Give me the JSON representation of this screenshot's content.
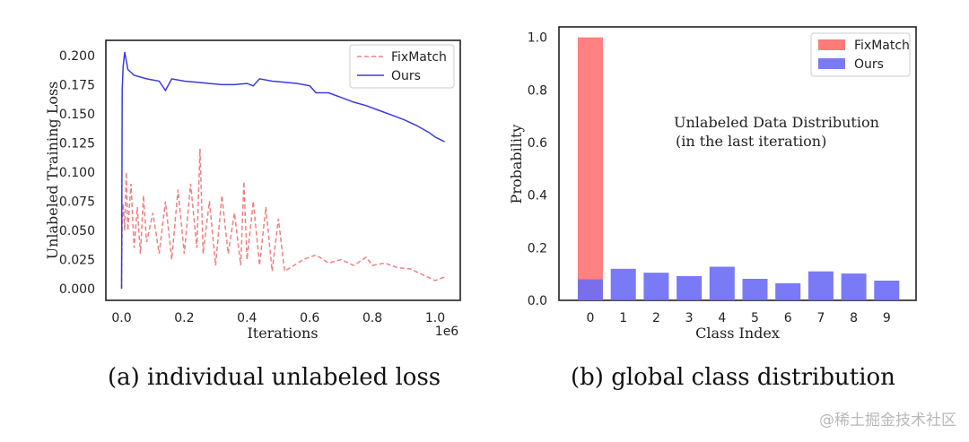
{
  "chart_data": [
    {
      "type": "line",
      "title": "",
      "xlabel": "Iterations",
      "ylabel": "Unlabeled Training Loss",
      "x_offset_label": "1e6",
      "xlim": [
        -0.05,
        1.08
      ],
      "ylim": [
        -0.01,
        0.213
      ],
      "xticks": [
        0.0,
        0.2,
        0.4,
        0.6,
        0.8,
        1.0
      ],
      "xtick_labels": [
        "0.0",
        "0.2",
        "0.4",
        "0.6",
        "0.8",
        "1.0"
      ],
      "yticks": [
        0.0,
        0.025,
        0.05,
        0.075,
        0.1,
        0.125,
        0.15,
        0.175,
        0.2
      ],
      "ytick_labels": [
        "0.000",
        "0.025",
        "0.050",
        "0.075",
        "0.100",
        "0.125",
        "0.150",
        "0.175",
        "0.200"
      ],
      "legend_position": "top-right",
      "series": [
        {
          "name": "FixMatch",
          "color": "#f08080",
          "style": "dashed",
          "x": [
            0.0,
            0.002,
            0.005,
            0.01,
            0.015,
            0.02,
            0.03,
            0.04,
            0.05,
            0.06,
            0.07,
            0.08,
            0.1,
            0.12,
            0.14,
            0.16,
            0.18,
            0.2,
            0.22,
            0.24,
            0.25,
            0.26,
            0.28,
            0.3,
            0.32,
            0.34,
            0.36,
            0.38,
            0.39,
            0.4,
            0.42,
            0.44,
            0.46,
            0.48,
            0.5,
            0.52,
            0.55,
            0.58,
            0.62,
            0.66,
            0.7,
            0.74,
            0.78,
            0.8,
            0.84,
            0.88,
            0.92,
            0.96,
            1.0,
            1.03
          ],
          "y": [
            0.0,
            0.06,
            0.073,
            0.05,
            0.1,
            0.05,
            0.09,
            0.035,
            0.07,
            0.03,
            0.08,
            0.04,
            0.065,
            0.03,
            0.075,
            0.025,
            0.085,
            0.03,
            0.09,
            0.035,
            0.12,
            0.03,
            0.075,
            0.02,
            0.08,
            0.03,
            0.065,
            0.02,
            0.092,
            0.025,
            0.075,
            0.02,
            0.07,
            0.015,
            0.06,
            0.015,
            0.02,
            0.025,
            0.029,
            0.022,
            0.025,
            0.02,
            0.027,
            0.02,
            0.022,
            0.018,
            0.017,
            0.012,
            0.007,
            0.01
          ]
        },
        {
          "name": "Ours",
          "color": "#3a3ae0",
          "style": "solid",
          "x": [
            0.0,
            0.002,
            0.005,
            0.01,
            0.02,
            0.04,
            0.08,
            0.12,
            0.14,
            0.16,
            0.2,
            0.24,
            0.28,
            0.32,
            0.36,
            0.4,
            0.42,
            0.44,
            0.48,
            0.52,
            0.56,
            0.6,
            0.62,
            0.66,
            0.7,
            0.74,
            0.78,
            0.82,
            0.86,
            0.9,
            0.94,
            0.98,
            1.0,
            1.03
          ],
          "y": [
            0.0,
            0.17,
            0.19,
            0.203,
            0.188,
            0.183,
            0.18,
            0.178,
            0.17,
            0.18,
            0.178,
            0.177,
            0.176,
            0.175,
            0.175,
            0.176,
            0.174,
            0.18,
            0.178,
            0.177,
            0.176,
            0.174,
            0.168,
            0.168,
            0.164,
            0.16,
            0.157,
            0.153,
            0.149,
            0.145,
            0.14,
            0.134,
            0.13,
            0.126
          ]
        }
      ]
    },
    {
      "type": "bar",
      "title": "",
      "xlabel": "Class Index",
      "ylabel": "Probability",
      "categories": [
        "0",
        "1",
        "2",
        "3",
        "4",
        "5",
        "6",
        "7",
        "8",
        "9"
      ],
      "ylim": [
        0,
        1.04
      ],
      "yticks": [
        0.0,
        0.2,
        0.4,
        0.6,
        0.8,
        1.0
      ],
      "ytick_labels": [
        "0.0",
        "0.2",
        "0.4",
        "0.6",
        "0.8",
        "1.0"
      ],
      "legend_position": "top-right",
      "annotation": [
        "Unlabeled Data Distribution",
        "(in the last iteration)"
      ],
      "series": [
        {
          "name": "FixMatch",
          "color": "#ff6b6b",
          "values": [
            1.0,
            0,
            0,
            0,
            0,
            0,
            0,
            0,
            0,
            0
          ]
        },
        {
          "name": "Ours",
          "color": "#6b6bf5",
          "values": [
            0.08,
            0.12,
            0.105,
            0.092,
            0.128,
            0.082,
            0.065,
            0.11,
            0.102,
            0.075
          ]
        }
      ]
    }
  ],
  "captions": {
    "left": "(a)  individual unlabeled loss",
    "right": "(b)  global class distribution"
  },
  "watermark": "@稀土掘金技术社区"
}
